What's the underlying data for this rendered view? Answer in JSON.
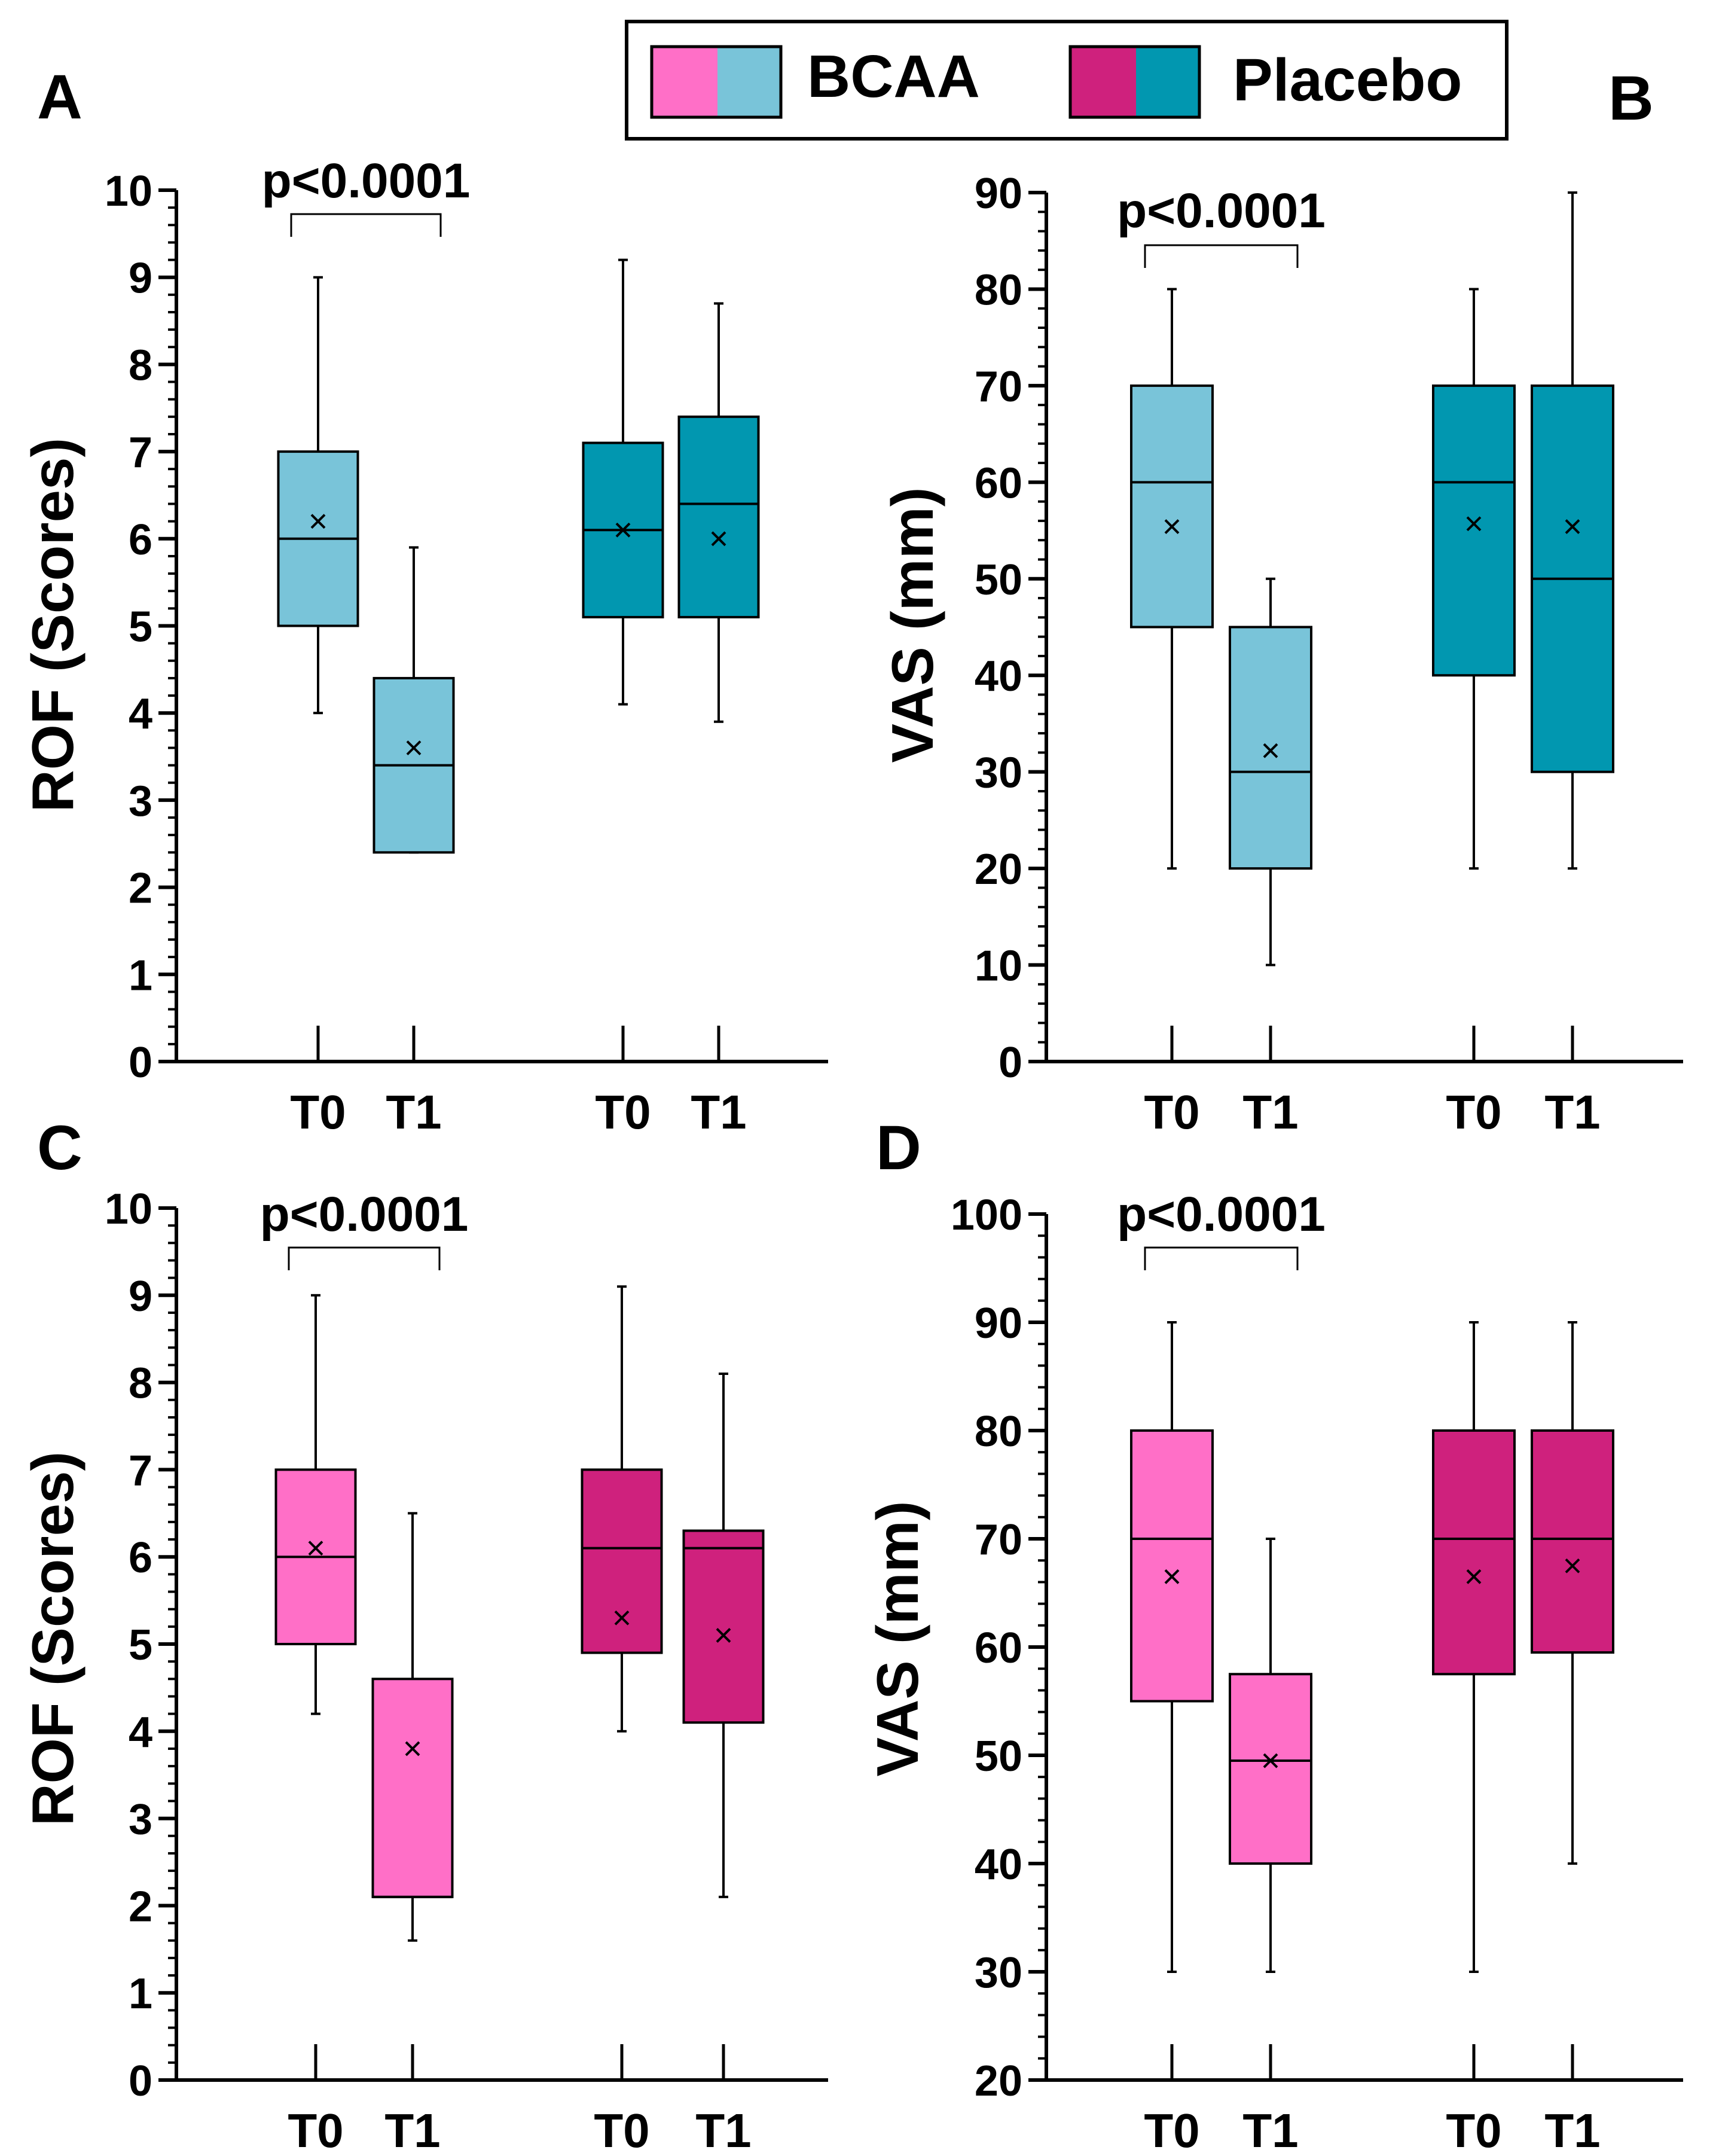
{
  "legend": {
    "items": [
      {
        "label": "BCAA",
        "colors": [
          "#ff6fc7",
          "#79c4d9"
        ]
      },
      {
        "label": "Placebo",
        "colors": [
          "#cf217d",
          "#0197b0"
        ]
      }
    ]
  },
  "chart_data": [
    {
      "panel": "A",
      "type": "box",
      "ylabel": "ROF (Scores)",
      "ylim": [
        0,
        10
      ],
      "yticks": [
        0,
        1,
        2,
        3,
        4,
        5,
        6,
        7,
        8,
        9,
        10
      ],
      "categories": [
        "T0",
        "T1",
        "T0",
        "T1"
      ],
      "annotation": {
        "text": "p<0.0001",
        "between": [
          0,
          1
        ]
      },
      "boxes": [
        {
          "group": "BCAA",
          "time": "T0",
          "min": 4.0,
          "q1": 5.0,
          "median": 6.0,
          "q3": 7.0,
          "max": 9.0,
          "mean": 6.2,
          "color": "#79c4d9"
        },
        {
          "group": "BCAA",
          "time": "T1",
          "min": 2.4,
          "q1": 2.4,
          "median": 3.4,
          "q3": 4.4,
          "max": 5.9,
          "mean": 3.6,
          "color": "#79c4d9"
        },
        {
          "group": "Placebo",
          "time": "T0",
          "min": 4.1,
          "q1": 5.1,
          "median": 6.1,
          "q3": 7.1,
          "max": 9.2,
          "mean": 6.1,
          "color": "#0197b0"
        },
        {
          "group": "Placebo",
          "time": "T1",
          "min": 3.9,
          "q1": 5.1,
          "median": 6.4,
          "q3": 7.4,
          "max": 8.7,
          "mean": 6.0,
          "color": "#0197b0"
        }
      ]
    },
    {
      "panel": "B",
      "type": "box",
      "ylabel": "VAS (mm)",
      "ylim": [
        0,
        90
      ],
      "yticks": [
        0,
        10,
        20,
        30,
        40,
        50,
        60,
        70,
        80,
        90
      ],
      "categories": [
        "T0",
        "T1",
        "T0",
        "T1"
      ],
      "annotation": {
        "text": "p<0.0001",
        "between": [
          0,
          1
        ]
      },
      "boxes": [
        {
          "group": "BCAA",
          "time": "T0",
          "min": 20,
          "q1": 45,
          "median": 60,
          "q3": 70,
          "max": 80,
          "mean": 55.4,
          "color": "#79c4d9"
        },
        {
          "group": "BCAA",
          "time": "T1",
          "min": 10,
          "q1": 20,
          "median": 30,
          "q3": 45,
          "max": 50,
          "mean": 32.2,
          "color": "#79c4d9"
        },
        {
          "group": "Placebo",
          "time": "T0",
          "min": 20,
          "q1": 40,
          "median": 60,
          "q3": 70,
          "max": 80,
          "mean": 55.7,
          "color": "#0197b0"
        },
        {
          "group": "Placebo",
          "time": "T1",
          "min": 20,
          "q1": 30,
          "median": 50,
          "q3": 70,
          "max": 90,
          "mean": 55.4,
          "color": "#0197b0"
        }
      ]
    },
    {
      "panel": "C",
      "type": "box",
      "ylabel": "ROF (Scores)",
      "ylim": [
        0,
        10
      ],
      "yticks": [
        0,
        1,
        2,
        3,
        4,
        5,
        6,
        7,
        8,
        9,
        10
      ],
      "categories": [
        "T0",
        "T1",
        "T0",
        "T1"
      ],
      "annotation": {
        "text": "p<0.0001",
        "between": [
          0,
          1
        ]
      },
      "boxes": [
        {
          "group": "BCAA",
          "time": "T0",
          "min": 4.2,
          "q1": 5.0,
          "median": 6.0,
          "q3": 7.0,
          "max": 9.0,
          "mean": 6.1,
          "color": "#ff6fc7"
        },
        {
          "group": "BCAA",
          "time": "T1",
          "min": 1.6,
          "q1": 2.1,
          "median": 2.1,
          "q3": 4.6,
          "max": 6.5,
          "mean": 3.8,
          "color": "#ff6fc7"
        },
        {
          "group": "Placebo",
          "time": "T0",
          "min": 4.0,
          "q1": 4.9,
          "median": 6.1,
          "q3": 7.0,
          "max": 9.1,
          "mean": 5.3,
          "color": "#cf217d"
        },
        {
          "group": "Placebo",
          "time": "T1",
          "min": 2.1,
          "q1": 4.1,
          "median": 6.1,
          "q3": 6.3,
          "max": 8.1,
          "mean": 5.1,
          "color": "#cf217d"
        }
      ]
    },
    {
      "panel": "D",
      "type": "box",
      "ylabel": "VAS (mm)",
      "ylim": [
        20,
        100
      ],
      "yticks": [
        20,
        30,
        40,
        50,
        60,
        70,
        80,
        90,
        100
      ],
      "categories": [
        "T0",
        "T1",
        "T0",
        "T1"
      ],
      "annotation": {
        "text": "p<0.0001",
        "between": [
          0,
          1
        ]
      },
      "boxes": [
        {
          "group": "BCAA",
          "time": "T0",
          "min": 30,
          "q1": 55,
          "median": 70,
          "q3": 80,
          "max": 90,
          "mean": 66.5,
          "color": "#ff6fc7"
        },
        {
          "group": "BCAA",
          "time": "T1",
          "min": 30,
          "q1": 40,
          "median": 49.5,
          "q3": 57.5,
          "max": 70,
          "mean": 49.5,
          "color": "#ff6fc7"
        },
        {
          "group": "Placebo",
          "time": "T0",
          "min": 30,
          "q1": 57.5,
          "median": 70,
          "q3": 80,
          "max": 90,
          "mean": 66.5,
          "color": "#cf217d"
        },
        {
          "group": "Placebo",
          "time": "T1",
          "min": 40,
          "q1": 59.5,
          "median": 70,
          "q3": 80,
          "max": 90,
          "mean": 67.5,
          "color": "#cf217d"
        }
      ]
    }
  ]
}
